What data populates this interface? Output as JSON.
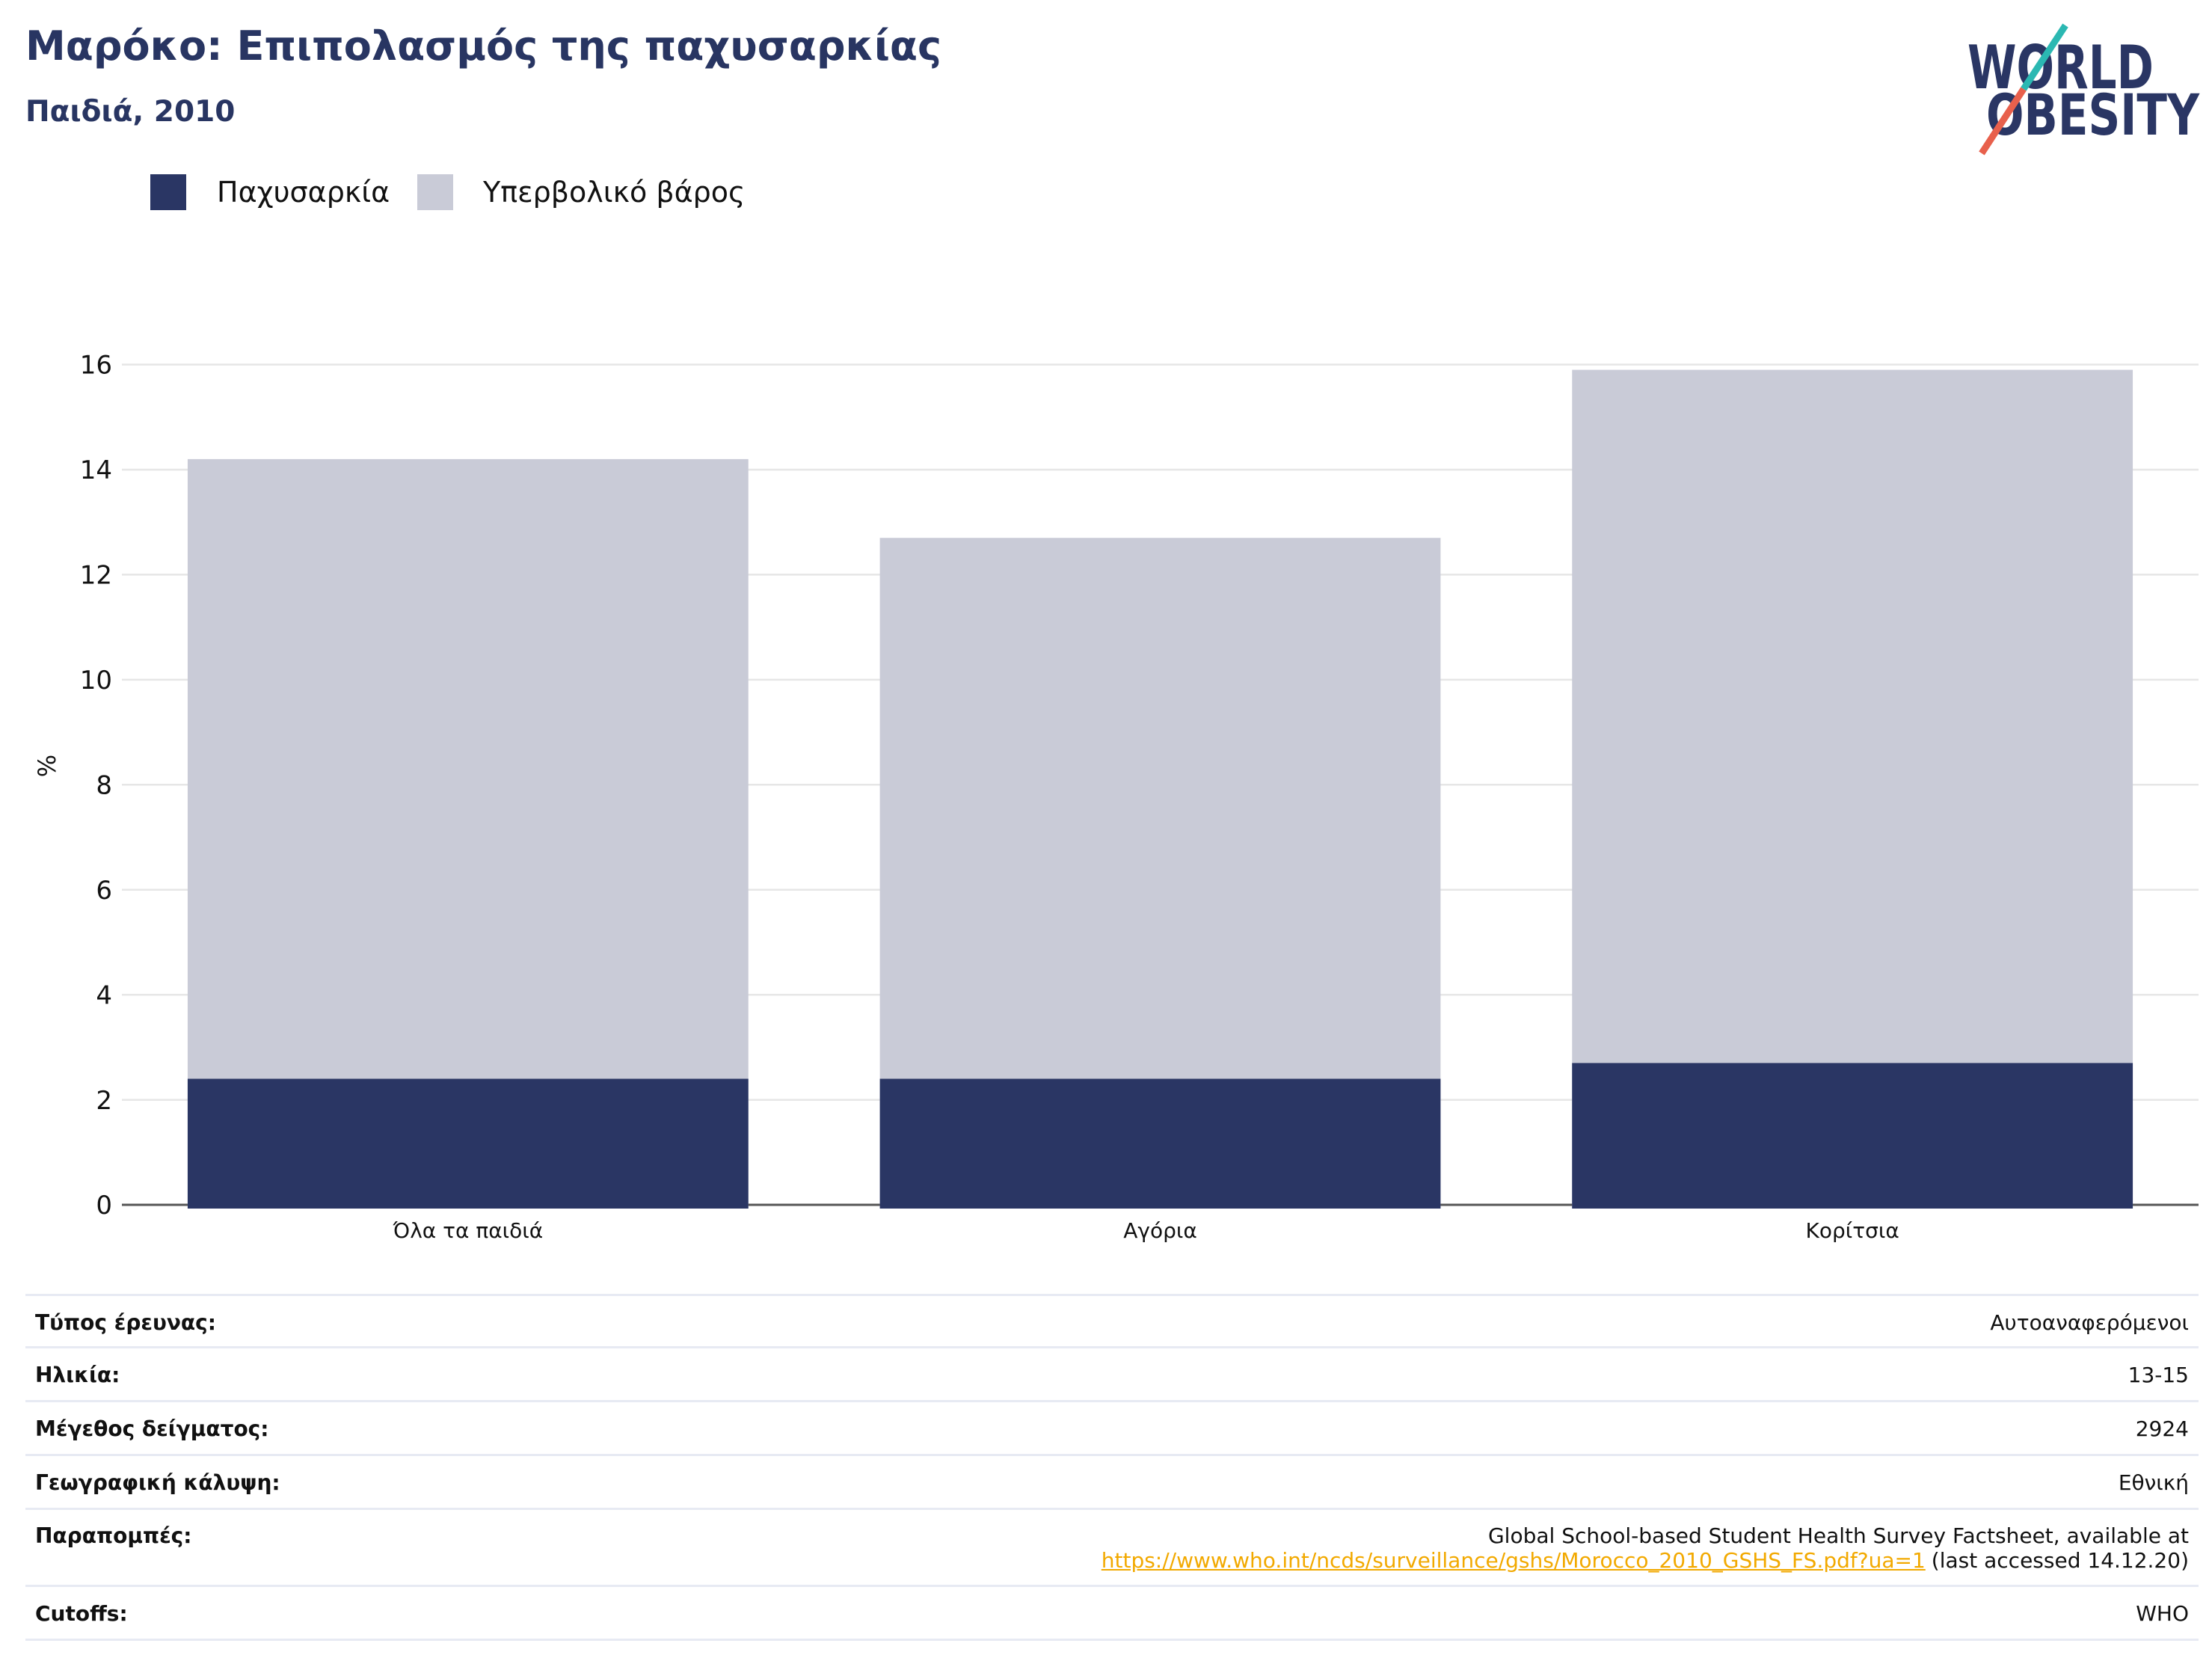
{
  "chart_data": {
    "type": "bar",
    "barmode": "overlay",
    "title": "Μαρόκο: Επιπολασμός της παχυσαρκίας",
    "subtitle": "Παιδιά, 2010",
    "categories": [
      "Όλα τα παιδιά",
      "Αγόρια",
      "Κορίτσια"
    ],
    "series": [
      {
        "name": "Παχυσαρκία",
        "color": "#2a3664",
        "values": [
          2.4,
          2.4,
          2.7
        ]
      },
      {
        "name": "Υπερβολικό βάρος",
        "color": "#c9cbd7",
        "values": [
          14.2,
          12.7,
          15.9
        ]
      }
    ],
    "xlabel": "",
    "ylabel": "%",
    "ylim": [
      0,
      16
    ],
    "yticks": [
      0,
      2,
      4,
      6,
      8,
      10,
      12,
      14,
      16
    ],
    "grid": true,
    "legend_position": "top-left"
  },
  "logo": {
    "line1": "WORLD",
    "line2": "OBESITY"
  },
  "info": {
    "rows": [
      {
        "label": "Τύπος έρευνας:",
        "value": "Αυτοαναφερόμενοι"
      },
      {
        "label": "Ηλικία:",
        "value": "13-15"
      },
      {
        "label": "Μέγεθος δείγματος:",
        "value": "2924"
      },
      {
        "label": "Γεωγραφική κάλυψη:",
        "value": "Εθνική"
      },
      {
        "label": "Cutoffs:",
        "value": "WHO"
      }
    ],
    "references": {
      "label": "Παραπομπές:",
      "text": "Global School-based Student Health Survey Factsheet, available at",
      "link": "https://www.who.int/ncds/surveillance/gshs/Morocco_2010_GSHS_FS.pdf?ua=1",
      "suffix": "(last accessed 14.12.20)"
    }
  },
  "colors": {
    "title": "#283562",
    "brand_navy": "#2a3664",
    "brand_teal": "#2bb8b2",
    "brand_coral": "#e8604c",
    "link": "#f2a900",
    "grid": "#e6e6e6",
    "axis": "#555555",
    "table_border": "#e7eaf3"
  }
}
